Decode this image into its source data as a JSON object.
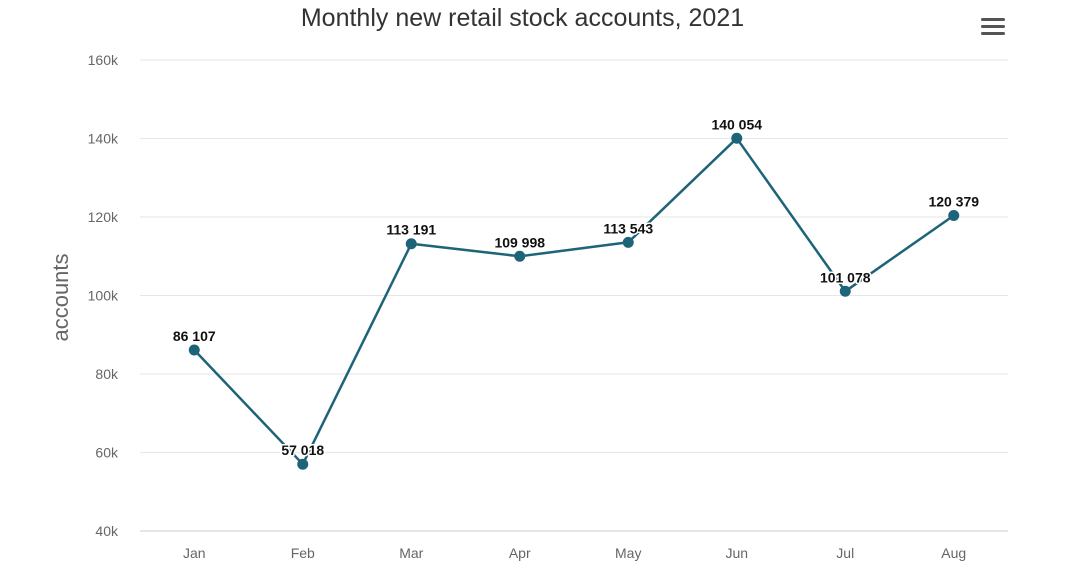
{
  "header": {
    "menu_icon": "hamburger-menu-icon"
  },
  "colors": {
    "series": "#1e6478",
    "grid": "#e6e6e6",
    "text": "#333333",
    "axis_text": "#666666"
  },
  "chart_data": {
    "type": "line",
    "title": "Monthly new retail stock accounts, 2021",
    "xlabel": "",
    "ylabel": "accounts",
    "categories": [
      "Jan",
      "Feb",
      "Mar",
      "Apr",
      "May",
      "Jun",
      "Jul",
      "Aug"
    ],
    "series": [
      {
        "values": [
          86107,
          57018,
          113191,
          109998,
          113543,
          140054,
          101078,
          120379
        ],
        "data_labels": [
          "86 107",
          "57 018",
          "113 191",
          "109 998",
          "113 543",
          "140 054",
          "101 078",
          "120 379"
        ]
      }
    ],
    "ylim": [
      40000,
      160000
    ],
    "yticks": [
      40000,
      60000,
      80000,
      100000,
      120000,
      140000,
      160000
    ],
    "ytick_labels": [
      "40k",
      "60k",
      "80k",
      "100k",
      "120k",
      "140k",
      "160k"
    ],
    "grid": true,
    "legend": "none"
  }
}
